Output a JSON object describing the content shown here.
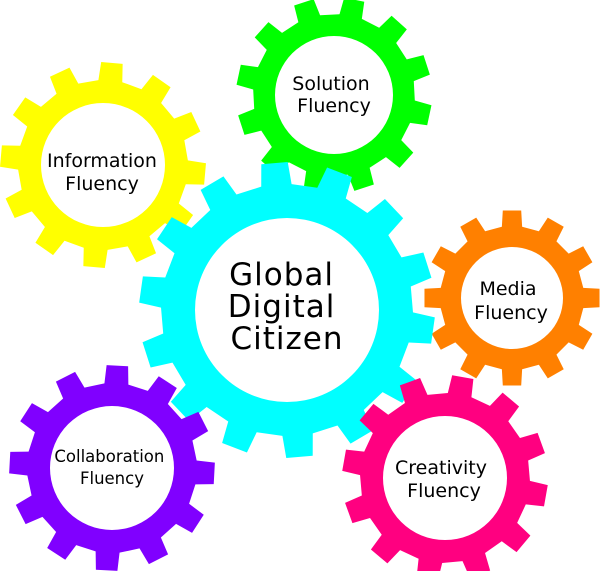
{
  "diagram": {
    "center": {
      "lines": [
        "Global",
        "Digital",
        "Citizen"
      ],
      "color": "#00FFFF"
    },
    "gears": [
      {
        "id": "information",
        "lines": [
          "Information",
          "Fluency"
        ],
        "color": "#FFFF00"
      },
      {
        "id": "solution",
        "lines": [
          "Solution",
          "Fluency"
        ],
        "color": "#00FF00"
      },
      {
        "id": "media",
        "lines": [
          "Media",
          "Fluency"
        ],
        "color": "#FF8000"
      },
      {
        "id": "creativity",
        "lines": [
          "Creativity",
          "Fluency"
        ],
        "color": "#FF0080"
      },
      {
        "id": "collaboration",
        "lines": [
          "Collaboration",
          "Fluency"
        ],
        "color": "#8000FF"
      }
    ]
  }
}
